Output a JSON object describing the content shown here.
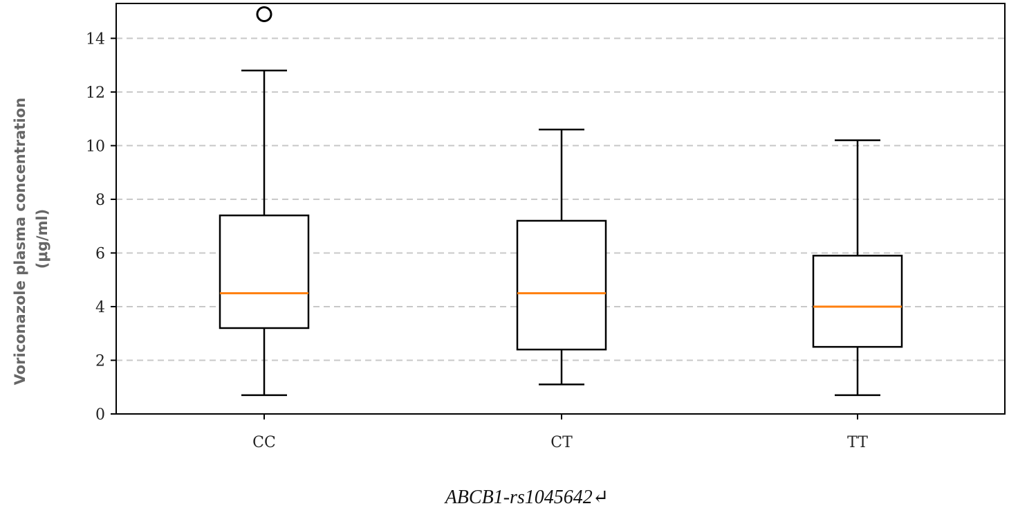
{
  "chart_data": {
    "type": "box",
    "xlabel": "ABCB1-rs1045642↵",
    "ylabel_lines": [
      "Voriconazole plasma concentration",
      "(μg/ml)"
    ],
    "ylim": [
      0,
      15.3
    ],
    "yticks": [
      0,
      2,
      4,
      6,
      8,
      10,
      12,
      14
    ],
    "grid": "horizontal dashed",
    "categories": [
      "CC",
      "CT",
      "TT"
    ],
    "boxes": [
      {
        "category": "CC",
        "whisker_low": 0.7,
        "q1": 3.2,
        "median": 4.5,
        "q3": 7.4,
        "whisker_high": 12.8,
        "outliers": [
          14.9
        ]
      },
      {
        "category": "CT",
        "whisker_low": 1.1,
        "q1": 2.4,
        "median": 4.5,
        "q3": 7.2,
        "whisker_high": 10.6,
        "outliers": []
      },
      {
        "category": "TT",
        "whisker_low": 0.7,
        "q1": 2.5,
        "median": 4.0,
        "q3": 5.9,
        "whisker_high": 10.2,
        "outliers": []
      }
    ],
    "colors": {
      "box": "#000000",
      "median": "#ff7f0e",
      "grid": "#c8c8c8"
    }
  }
}
